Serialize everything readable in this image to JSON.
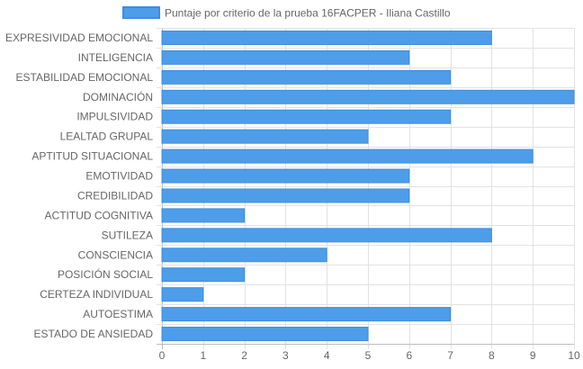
{
  "chart_data": {
    "type": "bar",
    "orientation": "horizontal",
    "categories": [
      "EXPRESIVIDAD EMOCIONAL",
      "INTELIGENCIA",
      "ESTABILIDAD EMOCIONAL",
      "DOMINACIÓN",
      "IMPULSIVIDAD",
      "LEALTAD GRUPAL",
      "APTITUD SITUACIONAL",
      "EMOTIVIDAD",
      "CREDIBILIDAD",
      "ACTITUD COGNITIVA",
      "SUTILEZA",
      "CONSCIENCIA",
      "POSICIÓN SOCIAL",
      "CERTEZA INDIVIDUAL",
      "AUTOESTIMA",
      "ESTADO DE ANSIEDAD"
    ],
    "series": [
      {
        "name": "Puntaje por criterio de la prueba 16FACPER - Iliana Castillo",
        "values": [
          8,
          6,
          7,
          10,
          7,
          5,
          9,
          6,
          6,
          2,
          8,
          4,
          2,
          1,
          7,
          5
        ],
        "color": "#4d9de9",
        "border_color": "#3d8ee0"
      }
    ],
    "xlim": [
      0,
      10
    ],
    "x_ticks": [
      "0",
      "1",
      "2",
      "3",
      "4",
      "5",
      "6",
      "7",
      "8",
      "9",
      "10"
    ],
    "grid": true,
    "legend_position": "top"
  }
}
